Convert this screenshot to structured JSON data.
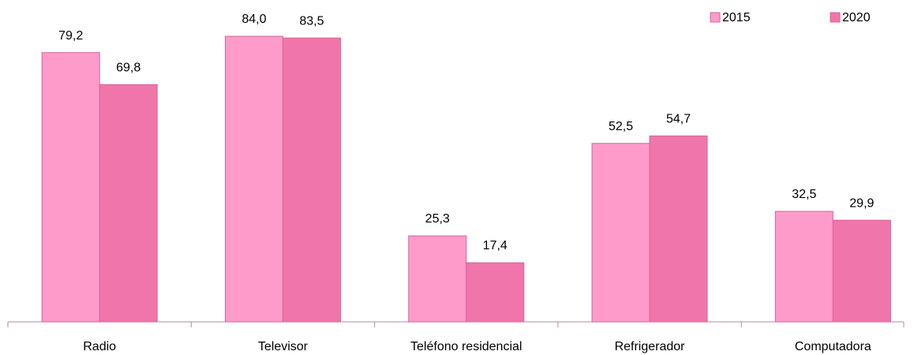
{
  "chart_data": {
    "type": "bar",
    "categories": [
      "Radio",
      "Televisor",
      "Teléfono residencial",
      "Refrigerador",
      "Computadora"
    ],
    "series": [
      {
        "name": "2015",
        "color": "#ff9bcb",
        "values": [
          79.2,
          84.0,
          25.3,
          52.5,
          32.5
        ],
        "value_labels": [
          "79,2",
          "84,0",
          "25,3",
          "52,5",
          "32,5"
        ]
      },
      {
        "name": "2020",
        "color": "#f075aa",
        "values": [
          69.8,
          83.5,
          17.4,
          54.7,
          29.9
        ],
        "value_labels": [
          "69,8",
          "83,5",
          "17,4",
          "54,7",
          "29,9"
        ]
      }
    ],
    "legend": "top-right"
  }
}
